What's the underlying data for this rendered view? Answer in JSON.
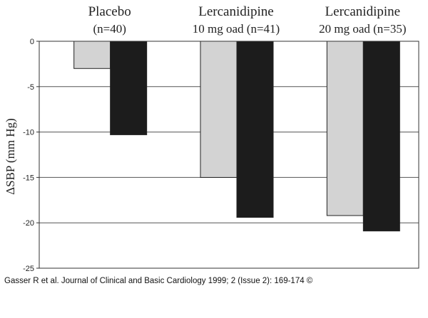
{
  "chart_data": {
    "type": "bar",
    "categories": [
      {
        "line1": "Placebo",
        "line2": "(n=40)"
      },
      {
        "line1": "Lercanidipine",
        "line2": "10 mg oad (n=41)"
      },
      {
        "line1": "Lercanidipine",
        "line2": "20 mg oad (n=35)"
      }
    ],
    "series": [
      {
        "name": "light",
        "color": "#d3d3d3",
        "values": [
          -3.0,
          -15.0,
          -19.2
        ]
      },
      {
        "name": "dark",
        "color": "#1c1c1c",
        "values": [
          -10.3,
          -19.4,
          -20.9
        ]
      }
    ],
    "ylabel": "ΔSBP (mm Hg)",
    "ylim": [
      -25,
      0
    ],
    "yticks": [
      0,
      -5,
      -10,
      -15,
      -20,
      -25
    ],
    "ytick_labels": [
      "0",
      "-5",
      "-10",
      "-15",
      "-20",
      "-25"
    ],
    "grid": true
  },
  "caption": "Gasser R et al. Journal of Clinical and Basic Cardiology 1999; 2 (Issue 2): 169-174 ©"
}
